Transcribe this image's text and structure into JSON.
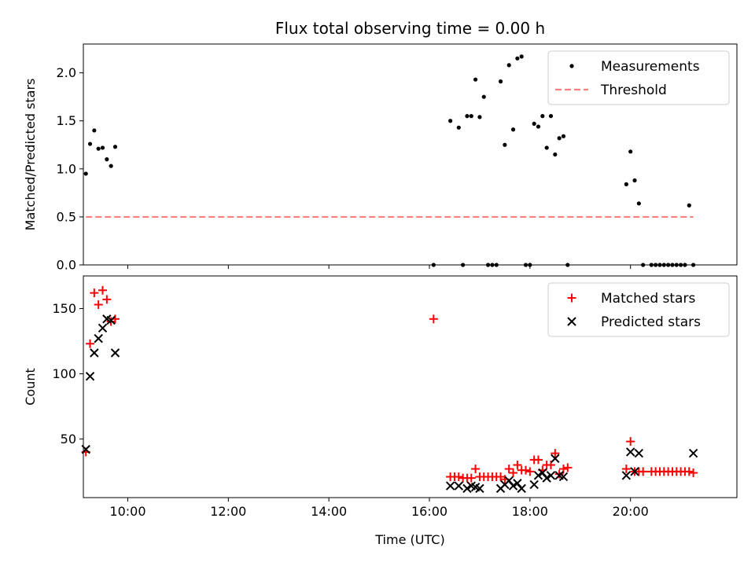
{
  "chart_data": [
    {
      "type": "scatter",
      "title": "Flux total observing time = 0.00 h",
      "ylabel": "Matched/Predicted stars",
      "xlim": [
        "09:07",
        "22:07"
      ],
      "ylim": [
        0,
        2.3
      ],
      "yticks": [
        "0.0",
        "0.5",
        "1.0",
        "1.5",
        "2.0"
      ],
      "legend_position": "top-right",
      "series": [
        {
          "name": "Measurements",
          "color": "#000000",
          "marker": "dot",
          "x": [
            "09:10",
            "09:15",
            "09:20",
            "09:25",
            "09:30",
            "09:35",
            "09:40",
            "09:45",
            "09:50",
            "16:05",
            "16:25",
            "16:35",
            "16:40",
            "16:45",
            "16:50",
            "16:55",
            "17:00",
            "17:05",
            "17:10",
            "17:15",
            "17:20",
            "17:25",
            "17:30",
            "17:35",
            "17:40",
            "17:45",
            "17:50",
            "17:55",
            "18:00",
            "18:05",
            "18:10",
            "18:15",
            "18:20",
            "18:25",
            "18:30",
            "18:35",
            "18:40",
            "18:45",
            "18:50",
            "19:55",
            "20:00",
            "20:05",
            "20:10",
            "20:15",
            "20:25",
            "20:30",
            "20:35",
            "20:40",
            "20:45",
            "20:50",
            "20:55",
            "21:00",
            "21:05",
            "21:10",
            "21:15"
          ],
          "y": [
            0.95,
            1.26,
            1.4,
            1.21,
            1.22,
            1.1,
            1.03,
            1.23,
            null,
            0,
            1.5,
            1.43,
            0,
            1.55,
            1.55,
            1.93,
            1.54,
            1.75,
            0,
            0,
            0,
            1.91,
            1.25,
            2.08,
            1.41,
            2.15,
            2.17,
            0,
            0,
            1.47,
            1.44,
            1.55,
            1.22,
            1.55,
            1.15,
            1.32,
            1.34,
            0,
            null,
            0.84,
            1.18,
            0.88,
            0.64,
            0,
            0,
            0,
            0,
            0,
            0,
            0,
            0,
            0,
            0,
            0.62,
            0
          ]
        },
        {
          "name": "Threshold",
          "color": "#ff7f7f",
          "marker": "dashed-line",
          "x": [
            "09:10",
            "21:15"
          ],
          "y": [
            0.5,
            0.5
          ]
        }
      ]
    },
    {
      "type": "scatter",
      "xlabel": "Time (UTC)",
      "ylabel": "Count",
      "xlim": [
        "09:07",
        "22:07"
      ],
      "xticks": [
        "10:00",
        "12:00",
        "14:00",
        "16:00",
        "18:00",
        "20:00"
      ],
      "ylim": [
        5,
        175
      ],
      "yticks": [
        "50",
        "100",
        "150"
      ],
      "legend_position": "top-right",
      "series": [
        {
          "name": "Matched stars",
          "color": "#ff0000",
          "marker": "plus",
          "x": [
            "09:10",
            "09:15",
            "09:20",
            "09:25",
            "09:30",
            "09:35",
            "09:40",
            "09:45",
            "16:05",
            "16:25",
            "16:30",
            "16:35",
            "16:40",
            "16:45",
            "16:50",
            "16:55",
            "17:00",
            "17:05",
            "17:10",
            "17:15",
            "17:20",
            "17:25",
            "17:30",
            "17:35",
            "17:40",
            "17:45",
            "17:50",
            "17:55",
            "18:00",
            "18:05",
            "18:10",
            "18:15",
            "18:20",
            "18:25",
            "18:30",
            "18:35",
            "18:40",
            "18:45",
            "19:55",
            "20:00",
            "20:05",
            "20:10",
            "20:15",
            "20:25",
            "20:30",
            "20:35",
            "20:40",
            "20:45",
            "20:50",
            "20:55",
            "21:00",
            "21:05",
            "21:10",
            "21:15"
          ],
          "y": [
            40,
            123,
            162,
            153,
            164,
            157,
            140,
            142,
            142,
            21,
            21,
            21,
            20,
            20,
            20,
            27,
            21,
            21,
            21,
            21,
            21,
            21,
            19,
            27,
            24,
            30,
            26,
            26,
            25,
            34,
            34,
            26,
            30,
            30,
            39,
            23,
            27,
            28,
            27,
            48,
            25,
            25,
            25,
            25,
            25,
            25,
            25,
            25,
            25,
            25,
            25,
            25,
            25,
            24
          ]
        },
        {
          "name": "Predicted stars",
          "color": "#000000",
          "marker": "x",
          "x": [
            "09:10",
            "09:15",
            "09:20",
            "09:25",
            "09:30",
            "09:35",
            "09:40",
            "09:45",
            "16:25",
            "16:35",
            "16:45",
            "16:50",
            "16:55",
            "17:00",
            "17:25",
            "17:30",
            "17:35",
            "17:40",
            "17:45",
            "17:50",
            "18:05",
            "18:10",
            "18:15",
            "18:20",
            "18:25",
            "18:30",
            "18:35",
            "18:40",
            "19:55",
            "20:00",
            "20:05",
            "20:10",
            "21:15"
          ],
          "y": [
            42,
            98,
            116,
            127,
            135,
            142,
            141,
            116,
            14,
            14,
            12,
            14,
            13,
            12,
            12,
            15,
            18,
            14,
            16,
            12,
            15,
            22,
            24,
            20,
            22,
            35,
            22,
            21,
            22,
            40,
            25,
            39,
            39
          ]
        }
      ]
    }
  ]
}
